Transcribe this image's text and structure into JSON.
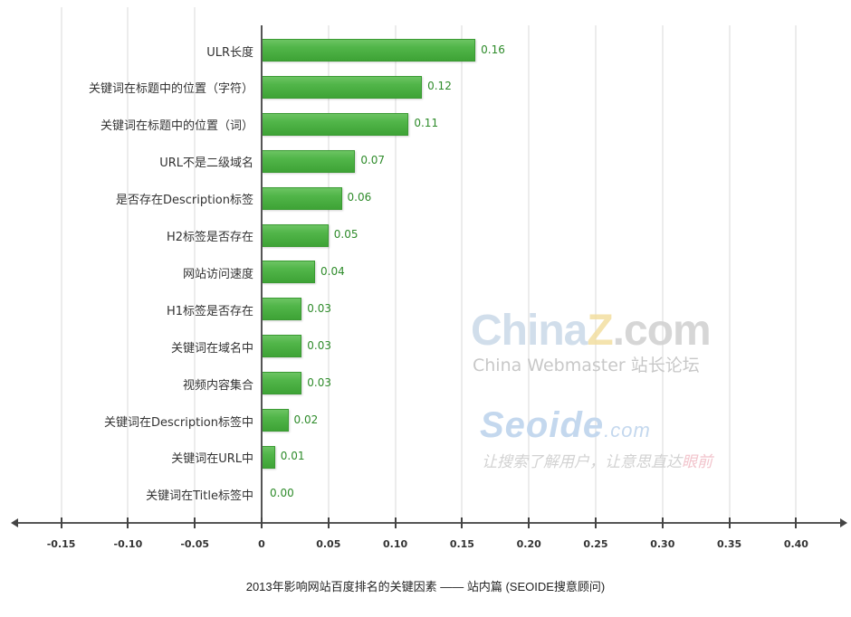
{
  "chart_data": {
    "type": "bar",
    "orientation": "horizontal",
    "title": "2013年影响网站百度排名的关键因素 —— 站内篇 (SEOIDE搜意顾问)",
    "xlabel": "",
    "ylabel": "",
    "xlim": [
      -0.15,
      0.4
    ],
    "grid": true,
    "legend": null,
    "categories": [
      "ULR长度",
      "关键词在标题中的位置（字符）",
      "关键词在标题中的位置（词）",
      "URL不是二级域名",
      "是否存在Description标签",
      "H2标签是否存在",
      "网站访问速度",
      "H1标签是否存在",
      "关键词在域名中",
      "视频内容集合",
      "关键词在Description标签中",
      "关键词在URL中",
      "关键词在Title标签中"
    ],
    "values": [
      0.16,
      0.12,
      0.11,
      0.07,
      0.06,
      0.05,
      0.04,
      0.03,
      0.03,
      0.03,
      0.02,
      0.01,
      0.0
    ],
    "value_labels": [
      "0.16",
      "0.12",
      "0.11",
      "0.07",
      "0.06",
      "0.05",
      "0.04",
      "0.03",
      "0.03",
      "0.03",
      "0.02",
      "0.01",
      "0.00"
    ],
    "x_ticks": [
      -0.15,
      -0.1,
      -0.05,
      0,
      0.05,
      0.1,
      0.15,
      0.2,
      0.25,
      0.3,
      0.35,
      0.4
    ],
    "x_tick_labels": [
      "-0.15",
      "-0.10",
      "-0.05",
      "0",
      "0.05",
      "0.10",
      "0.15",
      "0.20",
      "0.25",
      "0.30",
      "0.35",
      "0.40"
    ],
    "bar_color": "#4caf44",
    "value_label_color": "#2e8b2a"
  },
  "caption": "2013年影响网站百度排名的关键因素 —— 站内篇 (SEOIDE搜意顾问)",
  "watermarks": {
    "chinaz": {
      "china": "China",
      "z": "Z",
      "dotcom": ".com",
      "subtitle": "China Webmaster  站长论坛"
    },
    "seoide": {
      "name": "Seoide",
      "dotcom": ".com",
      "slogan_main": "让搜索了解用户，让意思直达",
      "slogan_tail": "眼前"
    }
  }
}
